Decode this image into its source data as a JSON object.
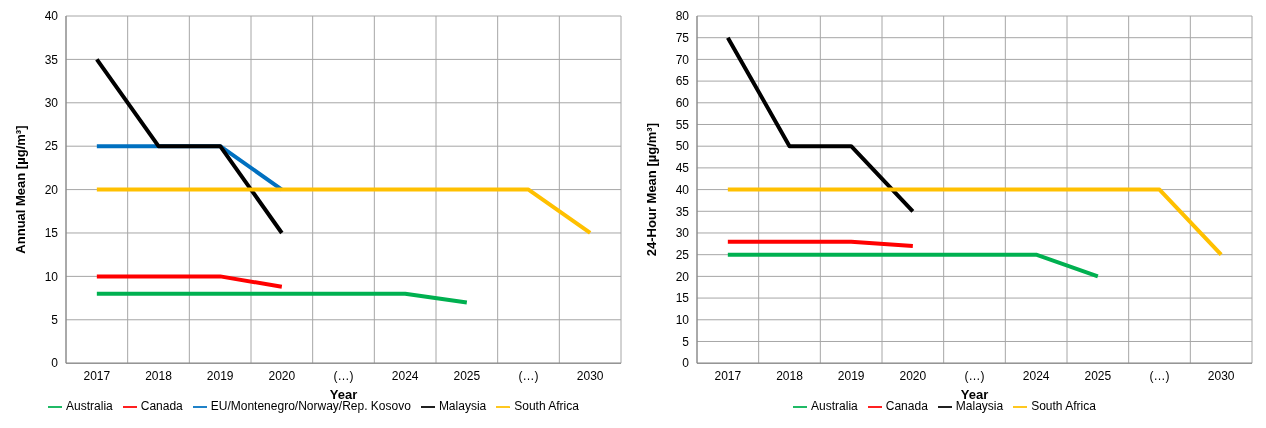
{
  "chart_data": [
    {
      "type": "line",
      "xlabel": "Year",
      "ylabel": "Annual Mean [µg/m³]",
      "categories": [
        "2017",
        "2018",
        "2019",
        "2020",
        "(…)",
        "2024",
        "2025",
        "(…)",
        "2030"
      ],
      "ylim": [
        0,
        40
      ],
      "yticks": [
        0,
        5,
        10,
        15,
        20,
        25,
        30,
        35,
        40
      ],
      "grid": true,
      "legend": "bottom",
      "marker": "none",
      "line_style": "solid",
      "series": [
        {
          "name": "Australia",
          "color": "#00b050",
          "values": [
            8,
            8,
            8,
            8,
            8,
            8,
            7,
            null,
            null
          ]
        },
        {
          "name": "Canada",
          "color": "#ff0000",
          "values": [
            10,
            10,
            10,
            8.8,
            null,
            null,
            null,
            null,
            null
          ]
        },
        {
          "name": "EU/Montenegro/Norway/Rep. Kosovo",
          "color": "#0070c0",
          "values": [
            25,
            25,
            25,
            20,
            null,
            null,
            null,
            null,
            null
          ]
        },
        {
          "name": "Malaysia",
          "color": "#000000",
          "values": [
            35,
            25,
            25,
            15,
            null,
            null,
            null,
            null,
            null
          ]
        },
        {
          "name": "South Africa",
          "color": "#ffc000",
          "values": [
            20,
            20,
            20,
            20,
            20,
            20,
            20,
            20,
            15
          ]
        }
      ]
    },
    {
      "type": "line",
      "xlabel": "Year",
      "ylabel": "24-Hour Mean [µg/m³]",
      "categories": [
        "2017",
        "2018",
        "2019",
        "2020",
        "(…)",
        "2024",
        "2025",
        "(…)",
        "2030"
      ],
      "ylim": [
        0,
        80
      ],
      "yticks": [
        0,
        5,
        10,
        15,
        20,
        25,
        30,
        35,
        40,
        45,
        50,
        55,
        60,
        65,
        70,
        75,
        80
      ],
      "grid": true,
      "legend": "bottom",
      "marker": "none",
      "line_style": "solid",
      "series": [
        {
          "name": "Australia",
          "color": "#00b050",
          "values": [
            25,
            25,
            25,
            25,
            25,
            25,
            20,
            null,
            null
          ]
        },
        {
          "name": "Canada",
          "color": "#ff0000",
          "values": [
            28,
            28,
            28,
            27,
            null,
            null,
            null,
            null,
            null
          ]
        },
        {
          "name": "Malaysia",
          "color": "#000000",
          "values": [
            75,
            50,
            50,
            35,
            null,
            null,
            null,
            null,
            null
          ]
        },
        {
          "name": "South Africa",
          "color": "#ffc000",
          "values": [
            40,
            40,
            40,
            40,
            40,
            40,
            40,
            40,
            25
          ]
        }
      ]
    }
  ]
}
